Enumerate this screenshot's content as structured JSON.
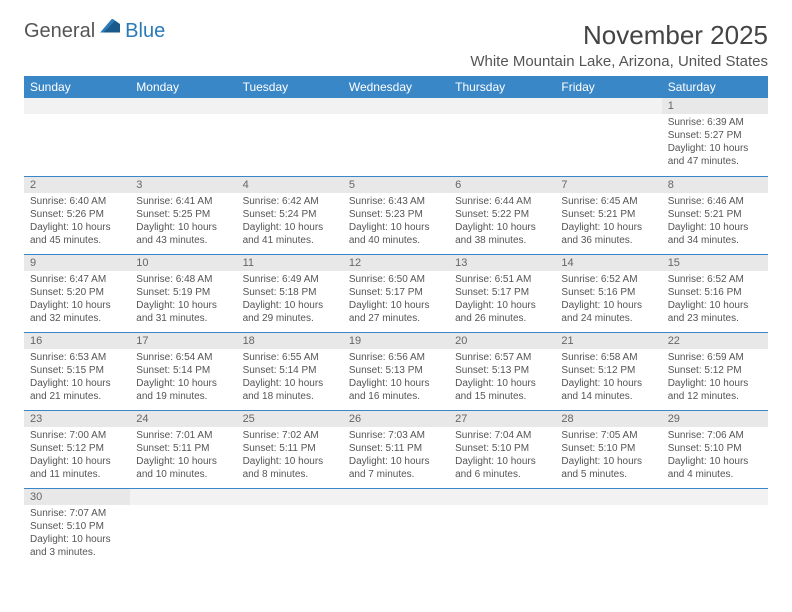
{
  "logo": {
    "text1": "General",
    "text2": "Blue"
  },
  "header": {
    "month": "November 2025",
    "location": "White Mountain Lake, Arizona, United States"
  },
  "colors": {
    "header_bg": "#3a87c7",
    "header_text": "#ffffff",
    "daynum_bg": "#e8e8e8",
    "cell_border": "#3a87c7"
  },
  "weekdays": [
    "Sunday",
    "Monday",
    "Tuesday",
    "Wednesday",
    "Thursday",
    "Friday",
    "Saturday"
  ],
  "weeks": [
    [
      {
        "n": "",
        "empty": true
      },
      {
        "n": "",
        "empty": true
      },
      {
        "n": "",
        "empty": true
      },
      {
        "n": "",
        "empty": true
      },
      {
        "n": "",
        "empty": true
      },
      {
        "n": "",
        "empty": true
      },
      {
        "n": "1",
        "sr": "Sunrise: 6:39 AM",
        "ss": "Sunset: 5:27 PM",
        "dl": "Daylight: 10 hours and 47 minutes."
      }
    ],
    [
      {
        "n": "2",
        "sr": "Sunrise: 6:40 AM",
        "ss": "Sunset: 5:26 PM",
        "dl": "Daylight: 10 hours and 45 minutes."
      },
      {
        "n": "3",
        "sr": "Sunrise: 6:41 AM",
        "ss": "Sunset: 5:25 PM",
        "dl": "Daylight: 10 hours and 43 minutes."
      },
      {
        "n": "4",
        "sr": "Sunrise: 6:42 AM",
        "ss": "Sunset: 5:24 PM",
        "dl": "Daylight: 10 hours and 41 minutes."
      },
      {
        "n": "5",
        "sr": "Sunrise: 6:43 AM",
        "ss": "Sunset: 5:23 PM",
        "dl": "Daylight: 10 hours and 40 minutes."
      },
      {
        "n": "6",
        "sr": "Sunrise: 6:44 AM",
        "ss": "Sunset: 5:22 PM",
        "dl": "Daylight: 10 hours and 38 minutes."
      },
      {
        "n": "7",
        "sr": "Sunrise: 6:45 AM",
        "ss": "Sunset: 5:21 PM",
        "dl": "Daylight: 10 hours and 36 minutes."
      },
      {
        "n": "8",
        "sr": "Sunrise: 6:46 AM",
        "ss": "Sunset: 5:21 PM",
        "dl": "Daylight: 10 hours and 34 minutes."
      }
    ],
    [
      {
        "n": "9",
        "sr": "Sunrise: 6:47 AM",
        "ss": "Sunset: 5:20 PM",
        "dl": "Daylight: 10 hours and 32 minutes."
      },
      {
        "n": "10",
        "sr": "Sunrise: 6:48 AM",
        "ss": "Sunset: 5:19 PM",
        "dl": "Daylight: 10 hours and 31 minutes."
      },
      {
        "n": "11",
        "sr": "Sunrise: 6:49 AM",
        "ss": "Sunset: 5:18 PM",
        "dl": "Daylight: 10 hours and 29 minutes."
      },
      {
        "n": "12",
        "sr": "Sunrise: 6:50 AM",
        "ss": "Sunset: 5:17 PM",
        "dl": "Daylight: 10 hours and 27 minutes."
      },
      {
        "n": "13",
        "sr": "Sunrise: 6:51 AM",
        "ss": "Sunset: 5:17 PM",
        "dl": "Daylight: 10 hours and 26 minutes."
      },
      {
        "n": "14",
        "sr": "Sunrise: 6:52 AM",
        "ss": "Sunset: 5:16 PM",
        "dl": "Daylight: 10 hours and 24 minutes."
      },
      {
        "n": "15",
        "sr": "Sunrise: 6:52 AM",
        "ss": "Sunset: 5:16 PM",
        "dl": "Daylight: 10 hours and 23 minutes."
      }
    ],
    [
      {
        "n": "16",
        "sr": "Sunrise: 6:53 AM",
        "ss": "Sunset: 5:15 PM",
        "dl": "Daylight: 10 hours and 21 minutes."
      },
      {
        "n": "17",
        "sr": "Sunrise: 6:54 AM",
        "ss": "Sunset: 5:14 PM",
        "dl": "Daylight: 10 hours and 19 minutes."
      },
      {
        "n": "18",
        "sr": "Sunrise: 6:55 AM",
        "ss": "Sunset: 5:14 PM",
        "dl": "Daylight: 10 hours and 18 minutes."
      },
      {
        "n": "19",
        "sr": "Sunrise: 6:56 AM",
        "ss": "Sunset: 5:13 PM",
        "dl": "Daylight: 10 hours and 16 minutes."
      },
      {
        "n": "20",
        "sr": "Sunrise: 6:57 AM",
        "ss": "Sunset: 5:13 PM",
        "dl": "Daylight: 10 hours and 15 minutes."
      },
      {
        "n": "21",
        "sr": "Sunrise: 6:58 AM",
        "ss": "Sunset: 5:12 PM",
        "dl": "Daylight: 10 hours and 14 minutes."
      },
      {
        "n": "22",
        "sr": "Sunrise: 6:59 AM",
        "ss": "Sunset: 5:12 PM",
        "dl": "Daylight: 10 hours and 12 minutes."
      }
    ],
    [
      {
        "n": "23",
        "sr": "Sunrise: 7:00 AM",
        "ss": "Sunset: 5:12 PM",
        "dl": "Daylight: 10 hours and 11 minutes."
      },
      {
        "n": "24",
        "sr": "Sunrise: 7:01 AM",
        "ss": "Sunset: 5:11 PM",
        "dl": "Daylight: 10 hours and 10 minutes."
      },
      {
        "n": "25",
        "sr": "Sunrise: 7:02 AM",
        "ss": "Sunset: 5:11 PM",
        "dl": "Daylight: 10 hours and 8 minutes."
      },
      {
        "n": "26",
        "sr": "Sunrise: 7:03 AM",
        "ss": "Sunset: 5:11 PM",
        "dl": "Daylight: 10 hours and 7 minutes."
      },
      {
        "n": "27",
        "sr": "Sunrise: 7:04 AM",
        "ss": "Sunset: 5:10 PM",
        "dl": "Daylight: 10 hours and 6 minutes."
      },
      {
        "n": "28",
        "sr": "Sunrise: 7:05 AM",
        "ss": "Sunset: 5:10 PM",
        "dl": "Daylight: 10 hours and 5 minutes."
      },
      {
        "n": "29",
        "sr": "Sunrise: 7:06 AM",
        "ss": "Sunset: 5:10 PM",
        "dl": "Daylight: 10 hours and 4 minutes."
      }
    ],
    [
      {
        "n": "30",
        "sr": "Sunrise: 7:07 AM",
        "ss": "Sunset: 5:10 PM",
        "dl": "Daylight: 10 hours and 3 minutes."
      },
      {
        "n": "",
        "empty": true
      },
      {
        "n": "",
        "empty": true
      },
      {
        "n": "",
        "empty": true
      },
      {
        "n": "",
        "empty": true
      },
      {
        "n": "",
        "empty": true
      },
      {
        "n": "",
        "empty": true
      }
    ]
  ]
}
